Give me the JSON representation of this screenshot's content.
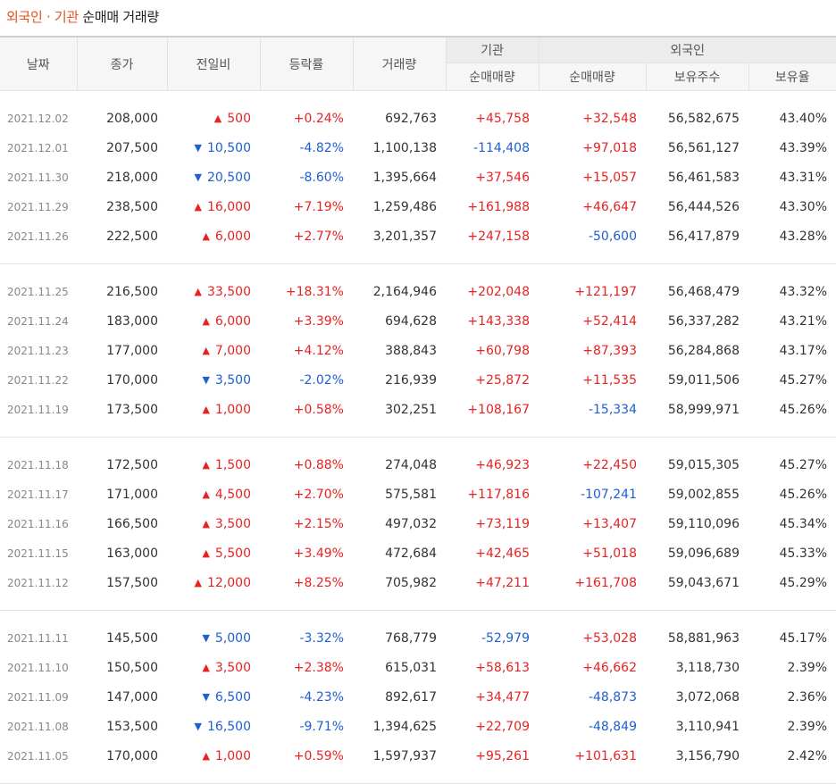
{
  "title": {
    "highlight": "외국인 · 기관",
    "rest": "순매매 거래량"
  },
  "headers": {
    "date": "날짜",
    "close": "종가",
    "change": "전일비",
    "rate": "등락률",
    "volume": "거래량",
    "inst_group": "기관",
    "foreign_group": "외국인",
    "inst_net": "순매매량",
    "foreign_net": "순매매량",
    "foreign_shares": "보유주수",
    "foreign_ratio": "보유율"
  },
  "colors": {
    "up": "#e82222",
    "down": "#1f5fd1",
    "title_accent": "#e5521d"
  },
  "groups": [
    [
      {
        "date": "2021.12.02",
        "close": "208,000",
        "dir": "up",
        "change": "500",
        "rate": "+0.24%",
        "volume": "692,763",
        "inst": "+45,758",
        "foreign": "+32,548",
        "shares": "56,582,675",
        "ratio": "43.40%"
      },
      {
        "date": "2021.12.01",
        "close": "207,500",
        "dir": "down",
        "change": "10,500",
        "rate": "-4.82%",
        "volume": "1,100,138",
        "inst": "-114,408",
        "foreign": "+97,018",
        "shares": "56,561,127",
        "ratio": "43.39%"
      },
      {
        "date": "2021.11.30",
        "close": "218,000",
        "dir": "down",
        "change": "20,500",
        "rate": "-8.60%",
        "volume": "1,395,664",
        "inst": "+37,546",
        "foreign": "+15,057",
        "shares": "56,461,583",
        "ratio": "43.31%"
      },
      {
        "date": "2021.11.29",
        "close": "238,500",
        "dir": "up",
        "change": "16,000",
        "rate": "+7.19%",
        "volume": "1,259,486",
        "inst": "+161,988",
        "foreign": "+46,647",
        "shares": "56,444,526",
        "ratio": "43.30%"
      },
      {
        "date": "2021.11.26",
        "close": "222,500",
        "dir": "up",
        "change": "6,000",
        "rate": "+2.77%",
        "volume": "3,201,357",
        "inst": "+247,158",
        "foreign": "-50,600",
        "shares": "56,417,879",
        "ratio": "43.28%"
      }
    ],
    [
      {
        "date": "2021.11.25",
        "close": "216,500",
        "dir": "up",
        "change": "33,500",
        "rate": "+18.31%",
        "volume": "2,164,946",
        "inst": "+202,048",
        "foreign": "+121,197",
        "shares": "56,468,479",
        "ratio": "43.32%"
      },
      {
        "date": "2021.11.24",
        "close": "183,000",
        "dir": "up",
        "change": "6,000",
        "rate": "+3.39%",
        "volume": "694,628",
        "inst": "+143,338",
        "foreign": "+52,414",
        "shares": "56,337,282",
        "ratio": "43.21%"
      },
      {
        "date": "2021.11.23",
        "close": "177,000",
        "dir": "up",
        "change": "7,000",
        "rate": "+4.12%",
        "volume": "388,843",
        "inst": "+60,798",
        "foreign": "+87,393",
        "shares": "56,284,868",
        "ratio": "43.17%"
      },
      {
        "date": "2021.11.22",
        "close": "170,000",
        "dir": "down",
        "change": "3,500",
        "rate": "-2.02%",
        "volume": "216,939",
        "inst": "+25,872",
        "foreign": "+11,535",
        "shares": "59,011,506",
        "ratio": "45.27%"
      },
      {
        "date": "2021.11.19",
        "close": "173,500",
        "dir": "up",
        "change": "1,000",
        "rate": "+0.58%",
        "volume": "302,251",
        "inst": "+108,167",
        "foreign": "-15,334",
        "shares": "58,999,971",
        "ratio": "45.26%"
      }
    ],
    [
      {
        "date": "2021.11.18",
        "close": "172,500",
        "dir": "up",
        "change": "1,500",
        "rate": "+0.88%",
        "volume": "274,048",
        "inst": "+46,923",
        "foreign": "+22,450",
        "shares": "59,015,305",
        "ratio": "45.27%"
      },
      {
        "date": "2021.11.17",
        "close": "171,000",
        "dir": "up",
        "change": "4,500",
        "rate": "+2.70%",
        "volume": "575,581",
        "inst": "+117,816",
        "foreign": "-107,241",
        "shares": "59,002,855",
        "ratio": "45.26%"
      },
      {
        "date": "2021.11.16",
        "close": "166,500",
        "dir": "up",
        "change": "3,500",
        "rate": "+2.15%",
        "volume": "497,032",
        "inst": "+73,119",
        "foreign": "+13,407",
        "shares": "59,110,096",
        "ratio": "45.34%"
      },
      {
        "date": "2021.11.15",
        "close": "163,000",
        "dir": "up",
        "change": "5,500",
        "rate": "+3.49%",
        "volume": "472,684",
        "inst": "+42,465",
        "foreign": "+51,018",
        "shares": "59,096,689",
        "ratio": "45.33%"
      },
      {
        "date": "2021.11.12",
        "close": "157,500",
        "dir": "up",
        "change": "12,000",
        "rate": "+8.25%",
        "volume": "705,982",
        "inst": "+47,211",
        "foreign": "+161,708",
        "shares": "59,043,671",
        "ratio": "45.29%"
      }
    ],
    [
      {
        "date": "2021.11.11",
        "close": "145,500",
        "dir": "down",
        "change": "5,000",
        "rate": "-3.32%",
        "volume": "768,779",
        "inst": "-52,979",
        "foreign": "+53,028",
        "shares": "58,881,963",
        "ratio": "45.17%"
      },
      {
        "date": "2021.11.10",
        "close": "150,500",
        "dir": "up",
        "change": "3,500",
        "rate": "+2.38%",
        "volume": "615,031",
        "inst": "+58,613",
        "foreign": "+46,662",
        "shares": "3,118,730",
        "ratio": "2.39%"
      },
      {
        "date": "2021.11.09",
        "close": "147,000",
        "dir": "down",
        "change": "6,500",
        "rate": "-4.23%",
        "volume": "892,617",
        "inst": "+34,477",
        "foreign": "-48,873",
        "shares": "3,072,068",
        "ratio": "2.36%"
      },
      {
        "date": "2021.11.08",
        "close": "153,500",
        "dir": "down",
        "change": "16,500",
        "rate": "-9.71%",
        "volume": "1,394,625",
        "inst": "+22,709",
        "foreign": "-48,849",
        "shares": "3,110,941",
        "ratio": "2.39%"
      },
      {
        "date": "2021.11.05",
        "close": "170,000",
        "dir": "up",
        "change": "1,000",
        "rate": "+0.59%",
        "volume": "1,597,937",
        "inst": "+95,261",
        "foreign": "+101,631",
        "shares": "3,156,790",
        "ratio": "2.42%"
      }
    ]
  ]
}
